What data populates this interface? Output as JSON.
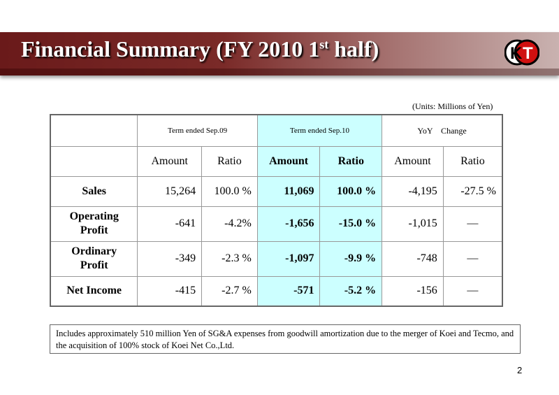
{
  "header": {
    "title": "Financial Summary (FY 2010 1",
    "title_sup": "st",
    "title_end": " half)",
    "logo_text": "KT"
  },
  "units": "(Units: Millions of Yen)",
  "table": {
    "groups": [
      "Term ended Sep.09",
      "Term ended Sep.10",
      "YoY　Change"
    ],
    "subheaders": [
      "Amount",
      "Ratio",
      "Amount",
      "Ratio",
      "Amount",
      "Ratio"
    ],
    "rows": [
      {
        "label": "Sales",
        "cells": [
          "15,264",
          "100.0 %",
          "11,069",
          "100.0 %",
          "-4,195",
          "-27.5 %"
        ]
      },
      {
        "label": "Operating Profit",
        "cells": [
          "-641",
          "-4.2%",
          "-1,656",
          "-15.0 %",
          "-1,015",
          "—"
        ]
      },
      {
        "label": "Ordinary Profit",
        "cells": [
          "-349",
          "-2.3 %",
          "-1,097",
          "-9.9 %",
          "-748",
          "—"
        ]
      },
      {
        "label": "Net Income",
        "cells": [
          "-415",
          "-2.7 %",
          "-571",
          "-5.2 %",
          "-156",
          "—"
        ]
      }
    ]
  },
  "note": "Includes approximately 510 million Yen of SG&A expenses from goodwill amortization due to  the merger of Koei and Tecmo, and the acquisition of 100% stock of Koei Net Co.,Ltd.",
  "page_number": "2",
  "colors": {
    "highlight": "#ccffff",
    "banner": "#6a1a1a"
  }
}
